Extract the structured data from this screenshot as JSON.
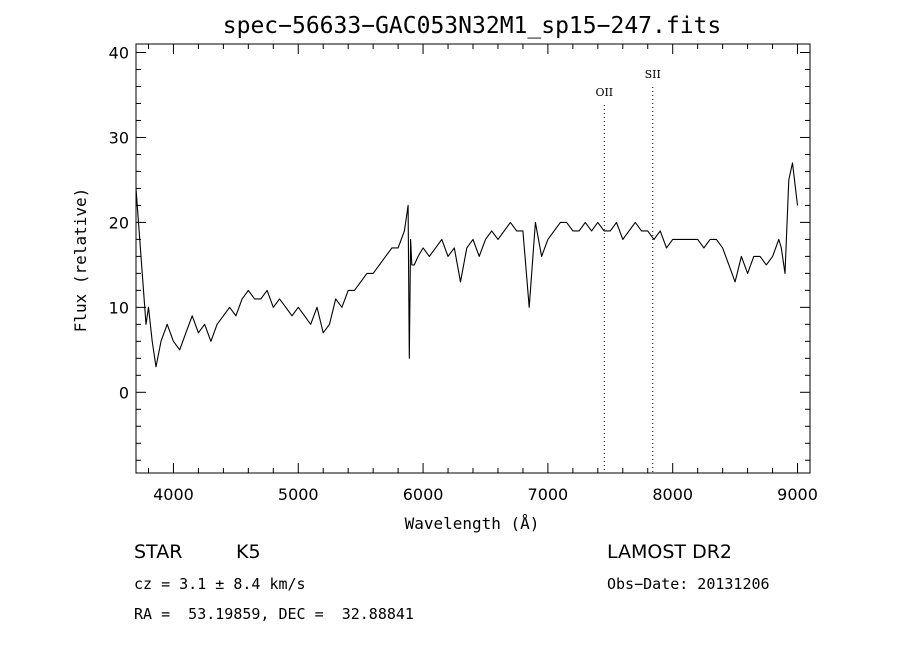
{
  "chart_data": {
    "type": "line",
    "title": "spec−56633−GAC053N32M1_sp15−247.fits",
    "xlabel": "Wavelength (Å)",
    "ylabel": "Flux (relative)",
    "xlim": [
      3700,
      9100
    ],
    "ylim": [
      -9.5,
      41
    ],
    "x_ticks": [
      4000,
      5000,
      6000,
      7000,
      8000,
      9000
    ],
    "y_ticks": [
      0,
      10,
      20,
      30,
      40
    ],
    "grid": false,
    "line_color": "#000000",
    "series": [
      {
        "x": [
          3700,
          3720,
          3740,
          3760,
          3780,
          3800,
          3830,
          3860,
          3900,
          3950,
          4000,
          4050,
          4100,
          4150,
          4200,
          4250,
          4300,
          4350,
          4400,
          4450,
          4500,
          4550,
          4600,
          4650,
          4700,
          4750,
          4800,
          4850,
          4900,
          4950,
          5000,
          5050,
          5100,
          5150,
          5200,
          5250,
          5300,
          5350,
          5400,
          5450,
          5500,
          5550,
          5600,
          5650,
          5700,
          5750,
          5800,
          5850,
          5880,
          5890,
          5900,
          5910,
          5930,
          5960,
          6000,
          6050,
          6100,
          6150,
          6200,
          6250,
          6300,
          6350,
          6400,
          6450,
          6500,
          6550,
          6600,
          6650,
          6700,
          6750,
          6800,
          6850,
          6900,
          6950,
          7000,
          7050,
          7100,
          7150,
          7200,
          7250,
          7300,
          7350,
          7400,
          7450,
          7500,
          7550,
          7600,
          7650,
          7700,
          7750,
          7800,
          7850,
          7900,
          7950,
          8000,
          8050,
          8100,
          8150,
          8200,
          8250,
          8300,
          8350,
          8400,
          8450,
          8500,
          8550,
          8600,
          8650,
          8700,
          8750,
          8800,
          8850,
          8870,
          8900,
          8930,
          8960,
          9000
        ],
        "y": [
          24,
          20,
          16,
          12,
          8,
          10,
          6,
          3,
          6,
          8,
          6,
          5,
          7,
          9,
          7,
          8,
          6,
          8,
          9,
          10,
          9,
          11,
          12,
          11,
          11,
          12,
          10,
          11,
          10,
          9,
          10,
          9,
          8,
          10,
          7,
          8,
          11,
          10,
          12,
          12,
          13,
          14,
          14,
          15,
          16,
          17,
          17,
          19,
          22,
          4,
          18,
          15,
          15,
          16,
          17,
          16,
          17,
          18,
          16,
          17,
          13,
          17,
          18,
          16,
          18,
          19,
          18,
          19,
          20,
          19,
          19,
          10,
          20,
          16,
          18,
          19,
          20,
          20,
          19,
          19,
          20,
          19,
          20,
          19,
          19,
          20,
          18,
          19,
          20,
          19,
          19,
          18,
          19,
          17,
          18,
          18,
          18,
          18,
          18,
          17,
          18,
          18,
          17,
          15,
          13,
          16,
          14,
          16,
          16,
          15,
          16,
          18,
          17,
          14,
          25,
          27,
          22
        ]
      }
    ],
    "annotations": [
      {
        "label": "OII",
        "x": 7452
      },
      {
        "label": "SII",
        "x": 7840
      }
    ]
  },
  "info": {
    "object_class": "STAR",
    "subclass": "K5",
    "survey": "LAMOST DR2",
    "cz": "cz = 3.1 ± 8.4 km/s",
    "obs_date": "Obs−Date: 20131206",
    "coords": "RA =  53.19859, DEC =  32.88841"
  }
}
